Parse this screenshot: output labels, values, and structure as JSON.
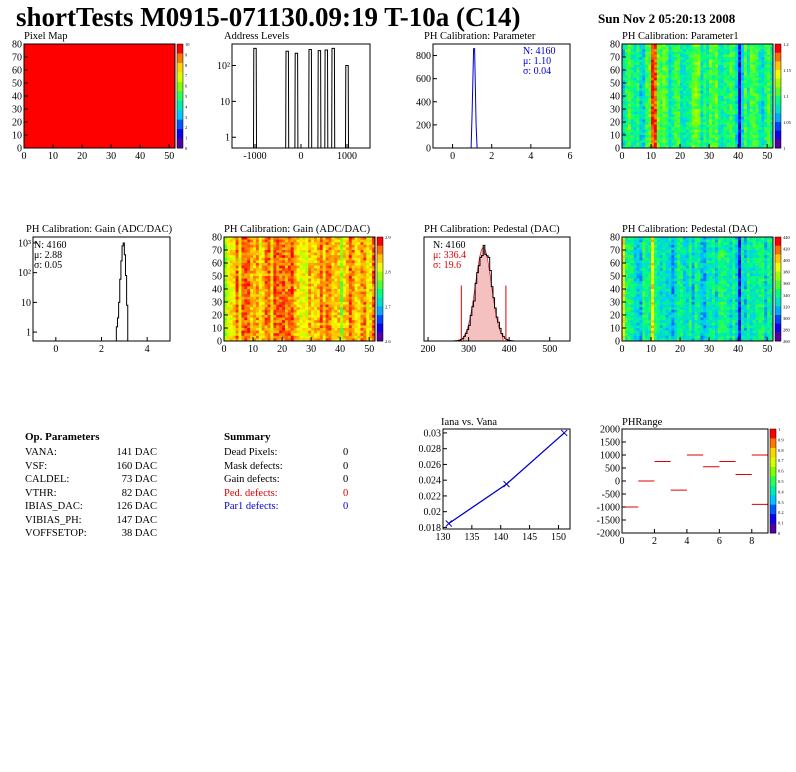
{
  "header": {
    "title": "shortTests M0915-071130.09:19 T-10a (C14)",
    "date": "Sun Nov  2 05:20:13 2008"
  },
  "panels": {
    "pixel_map": {
      "title": "Pixel Map",
      "x_ticks": [
        "0",
        "10",
        "20",
        "30",
        "40",
        "50"
      ],
      "y_ticks": [
        "0",
        "10",
        "20",
        "30",
        "40",
        "50",
        "60",
        "70",
        "80"
      ],
      "scale_ticks": [
        "10",
        "9",
        "8",
        "7",
        "6",
        "5",
        "4",
        "3",
        "2",
        "1",
        "0"
      ],
      "fill": "#ff0000"
    },
    "address_levels": {
      "title": "Address Levels",
      "x_ticks": [
        "-1000",
        "0",
        "1000"
      ],
      "y_ticks": [
        "1",
        "10",
        "10^2"
      ]
    },
    "ph_param": {
      "title": "PH Calibration: Parameter",
      "x_ticks": [
        "0",
        "2",
        "4",
        "6"
      ],
      "y_ticks": [
        "0",
        "200",
        "400",
        "600",
        "800"
      ],
      "stats": [
        "N: 4160",
        "μ: 1.10",
        "σ: 0.04"
      ],
      "stats_color": "#0000cc"
    },
    "ph_param1": {
      "title": "PH Calibration: Parameter1",
      "x_ticks": [
        "0",
        "10",
        "20",
        "30",
        "40",
        "50"
      ],
      "y_ticks": [
        "0",
        "10",
        "20",
        "30",
        "40",
        "50",
        "60",
        "70",
        "80"
      ],
      "scale_ticks": [
        "1.2",
        "1.15",
        "1.1",
        "1.05",
        "1"
      ]
    },
    "gain_hist": {
      "title": "PH Calibration: Gain (ADC/DAC)",
      "x_ticks": [
        "0",
        "2",
        "4"
      ],
      "y_ticks": [
        "1",
        "10",
        "10^2",
        "10^3"
      ],
      "stats": [
        "N: 4160",
        "μ: 2.88",
        "σ: 0.05"
      ]
    },
    "gain_map": {
      "title": "PH Calibration: Gain (ADC/DAC)",
      "x_ticks": [
        "0",
        "10",
        "20",
        "30",
        "40",
        "50"
      ],
      "y_ticks": [
        "0",
        "10",
        "20",
        "30",
        "40",
        "50",
        "60",
        "70",
        "80"
      ],
      "scale_ticks": [
        "2.9",
        "2.8",
        "2.7",
        "2.6"
      ]
    },
    "ped_hist": {
      "title": "PH Calibration: Pedestal (DAC)",
      "x_ticks": [
        "200",
        "300",
        "400",
        "500"
      ],
      "stats": [
        "N: 4160",
        "μ: 336.4",
        "σ: 19.6"
      ],
      "stats_colors": [
        "#000000",
        "#dd0000",
        "#dd0000"
      ]
    },
    "ped_map": {
      "title": "PH Calibration: Pedestal (DAC)",
      "x_ticks": [
        "0",
        "10",
        "20",
        "30",
        "40",
        "50"
      ],
      "y_ticks": [
        "0",
        "10",
        "20",
        "30",
        "40",
        "50",
        "60",
        "70",
        "80"
      ],
      "scale_ticks": [
        "440",
        "420",
        "400",
        "380",
        "360",
        "340",
        "320",
        "300",
        "280",
        "260"
      ]
    },
    "iana_vana": {
      "title": "Iana vs. Vana",
      "x_ticks": [
        "130",
        "135",
        "140",
        "145",
        "150"
      ],
      "y_ticks": [
        "0.018",
        "0.02",
        "0.022",
        "0.024",
        "0.026",
        "0.028",
        "0.03"
      ]
    },
    "phrange": {
      "title": "PHRange",
      "x_ticks": [
        "0",
        "2",
        "4",
        "6",
        "8"
      ],
      "y_ticks": [
        "2000",
        "1500",
        "1000",
        "500",
        "0",
        "-500",
        "-1000",
        "-1500",
        "-2000"
      ],
      "scale_ticks": [
        "1",
        "0.9",
        "0.8",
        "0.7",
        "0.6",
        "0.5",
        "0.4",
        "0.3",
        "0.2",
        "0.1",
        "0"
      ]
    }
  },
  "op_params": {
    "heading": "Op. Parameters",
    "rows": [
      {
        "name": "VANA:",
        "value": "141 DAC"
      },
      {
        "name": "VSF:",
        "value": "160 DAC"
      },
      {
        "name": "CALDEL:",
        "value": "73 DAC"
      },
      {
        "name": "VTHR:",
        "value": "82 DAC"
      },
      {
        "name": "IBIAS_DAC:",
        "value": "126 DAC"
      },
      {
        "name": "VIBIAS_PH:",
        "value": "147 DAC"
      },
      {
        "name": "VOFFSETOP:",
        "value": "38 DAC"
      }
    ]
  },
  "summary": {
    "heading": "Summary",
    "rows": [
      {
        "name": "Dead Pixels:",
        "value": "0",
        "color": "#000000"
      },
      {
        "name": "Mask defects:",
        "value": "0",
        "color": "#000000"
      },
      {
        "name": "Gain defects:",
        "value": "0",
        "color": "#000000"
      },
      {
        "name": "Ped. defects:",
        "value": "0",
        "color": "#dd0000"
      },
      {
        "name": "Par1 defects:",
        "value": "0",
        "color": "#0000cc"
      }
    ]
  },
  "chart_data": [
    {
      "type": "heatmap",
      "title": "Pixel Map",
      "xlim": [
        0,
        52
      ],
      "ylim": [
        0,
        80
      ],
      "uniform_value": 10
    },
    {
      "type": "bar",
      "title": "Address Levels",
      "log_y": true,
      "peaks_x": [
        -1000,
        -300,
        -100,
        200,
        400,
        550,
        700,
        1000
      ],
      "peaks_y": [
        300,
        250,
        220,
        280,
        260,
        270,
        300,
        100
      ]
    },
    {
      "type": "bar",
      "title": "PH Calibration: Parameter",
      "xlim": [
        -1,
        6
      ],
      "ylim": [
        0,
        900
      ],
      "peak_x": 1.1,
      "peak_y": 860
    },
    {
      "type": "heatmap",
      "title": "PH Calibration: Parameter1",
      "xlim": [
        0,
        52
      ],
      "ylim": [
        0,
        80
      ],
      "zlim": [
        1.0,
        1.2
      ]
    },
    {
      "type": "bar",
      "title": "PH Calibration: Gain (ADC/DAC)",
      "log_y": true,
      "xlim": [
        -1,
        5
      ],
      "peak_x": 2.9,
      "peak_y": 1000
    },
    {
      "type": "heatmap",
      "title": "PH Calibration: Gain (ADC/DAC)",
      "xlim": [
        0,
        52
      ],
      "ylim": [
        0,
        80
      ],
      "zlim": [
        2.5,
        3.0
      ]
    },
    {
      "type": "bar",
      "title": "PH Calibration: Pedestal (DAC)",
      "xlim": [
        200,
        550
      ],
      "mean": 336.4,
      "sigma": 19.6
    },
    {
      "type": "heatmap",
      "title": "PH Calibration: Pedestal (DAC)",
      "xlim": [
        0,
        52
      ],
      "ylim": [
        0,
        80
      ],
      "zlim": [
        260,
        440
      ]
    },
    {
      "type": "line",
      "title": "Iana vs. Vana",
      "x": [
        131,
        141,
        151
      ],
      "y": [
        0.0185,
        0.0235,
        0.03
      ],
      "xlim": [
        130,
        152
      ],
      "ylim": [
        0.0178,
        0.0305
      ]
    },
    {
      "type": "scatter",
      "title": "PHRange",
      "xlim": [
        0,
        9
      ],
      "ylim": [
        -2000,
        2000
      ],
      "segments": [
        {
          "x0": 0,
          "x1": 1,
          "y": -1000
        },
        {
          "x0": 1,
          "x1": 2,
          "y": 0
        },
        {
          "x0": 2,
          "x1": 3,
          "y": 750
        },
        {
          "x0": 3,
          "x1": 4,
          "y": -350
        },
        {
          "x0": 4,
          "x1": 5,
          "y": 1000
        },
        {
          "x0": 5,
          "x1": 6,
          "y": 550
        },
        {
          "x0": 6,
          "x1": 7,
          "y": 750
        },
        {
          "x0": 7,
          "x1": 8,
          "y": 250
        },
        {
          "x0": 8,
          "x1": 9,
          "y": 1000
        },
        {
          "x0": 8,
          "x1": 9,
          "y": -900
        }
      ]
    }
  ]
}
